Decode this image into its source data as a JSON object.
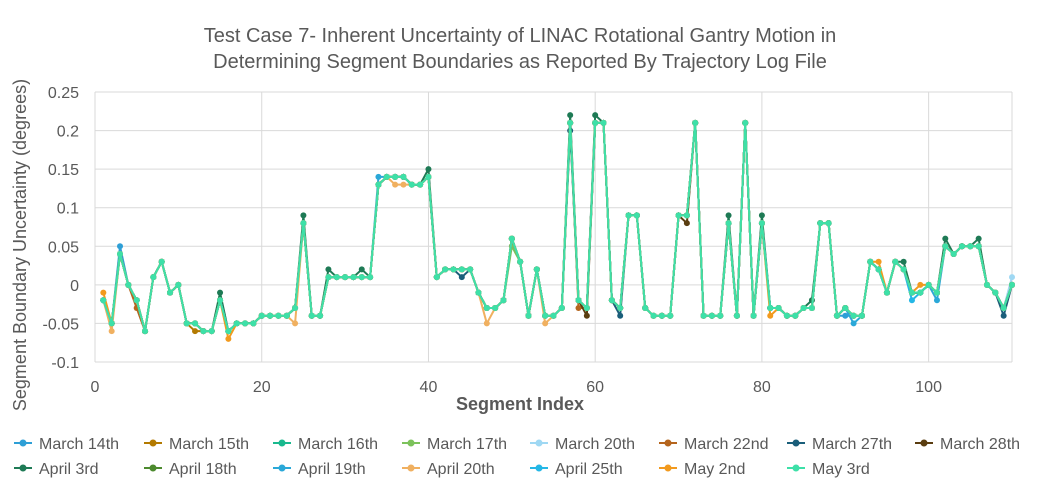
{
  "chart_data": {
    "type": "line",
    "title_lines": [
      "Test Case 7- Inherent Uncertainty of LINAC Rotational Gantry Motion in",
      "Determining Segment Boundaries  as Reported By Trajectory Log File"
    ],
    "xlabel": "Segment Index",
    "ylabel": "Segment Boundary Uncertainty (degrees)",
    "xlim": [
      0,
      110
    ],
    "ylim": [
      -0.1,
      0.25
    ],
    "x_ticks": [
      0,
      20,
      40,
      60,
      80,
      100
    ],
    "y_ticks": [
      -0.1,
      -0.05,
      0,
      0.05,
      0.1,
      0.15,
      0.2,
      0.25
    ],
    "x_tick_labels": [
      "0",
      "20",
      "40",
      "60",
      "80",
      "100"
    ],
    "y_tick_labels": [
      "-0.1",
      "-0.05",
      "0",
      "0.05",
      "0.1",
      "0.15",
      "0.2",
      "0.25"
    ],
    "grid": true,
    "legend_position": "bottom",
    "x": [
      1,
      2,
      3,
      4,
      5,
      6,
      7,
      8,
      9,
      10,
      11,
      12,
      13,
      14,
      15,
      16,
      17,
      18,
      19,
      20,
      21,
      22,
      23,
      24,
      25,
      26,
      27,
      28,
      29,
      30,
      31,
      32,
      33,
      34,
      35,
      36,
      37,
      38,
      39,
      40,
      41,
      42,
      43,
      44,
      45,
      46,
      47,
      48,
      49,
      50,
      51,
      52,
      53,
      54,
      55,
      56,
      57,
      58,
      59,
      60,
      61,
      62,
      63,
      64,
      65,
      66,
      67,
      68,
      69,
      70,
      71,
      72,
      73,
      74,
      75,
      76,
      77,
      78,
      79,
      80,
      81,
      82,
      83,
      84,
      85,
      86,
      87,
      88,
      89,
      90,
      91,
      92,
      93,
      94,
      95,
      96,
      97,
      98,
      99,
      100,
      101,
      102,
      103,
      104,
      105,
      106,
      107,
      108,
      109,
      110
    ],
    "base_values": [
      -0.02,
      -0.05,
      0.04,
      0,
      -0.02,
      -0.06,
      0.01,
      0.03,
      -0.01,
      0,
      -0.05,
      -0.05,
      -0.06,
      -0.06,
      -0.02,
      -0.06,
      -0.05,
      -0.05,
      -0.05,
      -0.04,
      -0.04,
      -0.04,
      -0.04,
      -0.03,
      0.08,
      -0.04,
      -0.04,
      0.01,
      0.01,
      0.01,
      0.01,
      0.01,
      0.01,
      0.13,
      0.14,
      0.14,
      0.14,
      0.13,
      0.13,
      0.14,
      0.01,
      0.02,
      0.02,
      0.02,
      0.02,
      -0.01,
      -0.03,
      -0.03,
      -0.02,
      0.06,
      0.03,
      -0.04,
      0.02,
      -0.04,
      -0.04,
      -0.03,
      0.21,
      -0.02,
      -0.03,
      0.21,
      0.21,
      -0.02,
      -0.03,
      0.09,
      0.09,
      -0.03,
      -0.04,
      -0.04,
      -0.04,
      0.09,
      0.09,
      0.21,
      -0.04,
      -0.04,
      -0.04,
      0.08,
      -0.04,
      0.21,
      -0.04,
      0.08,
      -0.03,
      -0.03,
      -0.04,
      -0.04,
      -0.03,
      -0.03,
      0.08,
      0.08,
      -0.04,
      -0.03,
      -0.04,
      -0.04,
      0.03,
      0.02,
      -0.01,
      0.03,
      0.02,
      -0.01,
      -0.01,
      0,
      -0.01,
      0.05,
      0.04,
      0.05,
      0.05,
      0.05,
      0,
      -0.01,
      -0.03,
      0
    ],
    "series": [
      {
        "name": "March 14th",
        "color": "#2e9fd6",
        "deltas": [
          [
            3,
            0.01
          ],
          [
            90,
            -0.01
          ]
        ]
      },
      {
        "name": "March 15th",
        "color": "#b37a00",
        "deltas": [
          [
            12,
            -0.01
          ]
        ]
      },
      {
        "name": "March 16th",
        "color": "#19b98e",
        "deltas": []
      },
      {
        "name": "March 17th",
        "color": "#7cc25b",
        "deltas": [
          [
            50,
            -0.01
          ]
        ]
      },
      {
        "name": "March 20th",
        "color": "#9fd8f3",
        "deltas": [
          [
            110,
            0.01
          ]
        ]
      },
      {
        "name": "March 22nd",
        "color": "#b5651d",
        "deltas": [
          [
            5,
            -0.01
          ],
          [
            58,
            -0.01
          ],
          [
            85,
            0.0
          ]
        ]
      },
      {
        "name": "March 27th",
        "color": "#1a5e7a",
        "deltas": [
          [
            44,
            -0.01
          ],
          [
            63,
            -0.01
          ],
          [
            109,
            -0.01
          ],
          [
            57,
            -0.01
          ]
        ]
      },
      {
        "name": "March 28th",
        "color": "#5a3d10",
        "deltas": [
          [
            59,
            -0.01
          ],
          [
            71,
            -0.01
          ]
        ]
      },
      {
        "name": "April 3rd",
        "color": "#1e7a55",
        "deltas": [
          [
            8,
            0.0
          ],
          [
            15,
            0.01
          ],
          [
            25,
            0.01
          ],
          [
            28,
            0.01
          ],
          [
            32,
            0.01
          ],
          [
            36,
            0.0
          ],
          [
            40,
            0.01
          ],
          [
            53,
            0.0
          ],
          [
            57,
            0.01
          ],
          [
            60,
            0.01
          ],
          [
            76,
            0.01
          ],
          [
            80,
            0.01
          ],
          [
            86,
            0.01
          ],
          [
            97,
            0.01
          ],
          [
            102,
            0.01
          ],
          [
            106,
            0.01
          ]
        ]
      },
      {
        "name": "April 18th",
        "color": "#4c8a2e",
        "deltas": [
          [
            47,
            0.0
          ]
        ]
      },
      {
        "name": "April 19th",
        "color": "#2aa8d8",
        "deltas": [
          [
            34,
            0.01
          ],
          [
            91,
            -0.01
          ],
          [
            101,
            -0.01
          ]
        ]
      },
      {
        "name": "April 20th",
        "color": "#f0b060",
        "deltas": [
          [
            2,
            -0.01
          ],
          [
            24,
            -0.02
          ],
          [
            47,
            -0.02
          ],
          [
            54,
            -0.01
          ],
          [
            36,
            -0.01
          ],
          [
            37,
            -0.01
          ]
        ]
      },
      {
        "name": "April 25th",
        "color": "#24b7e6",
        "deltas": [
          [
            98,
            -0.01
          ]
        ]
      },
      {
        "name": "May 2nd",
        "color": "#f29a1e",
        "deltas": [
          [
            1,
            0.01
          ],
          [
            16,
            -0.01
          ],
          [
            81,
            -0.01
          ],
          [
            94,
            0.01
          ],
          [
            99,
            0.01
          ],
          [
            55,
            0.0
          ]
        ]
      },
      {
        "name": "May 3rd",
        "color": "#3de0a8",
        "deltas": []
      }
    ]
  }
}
